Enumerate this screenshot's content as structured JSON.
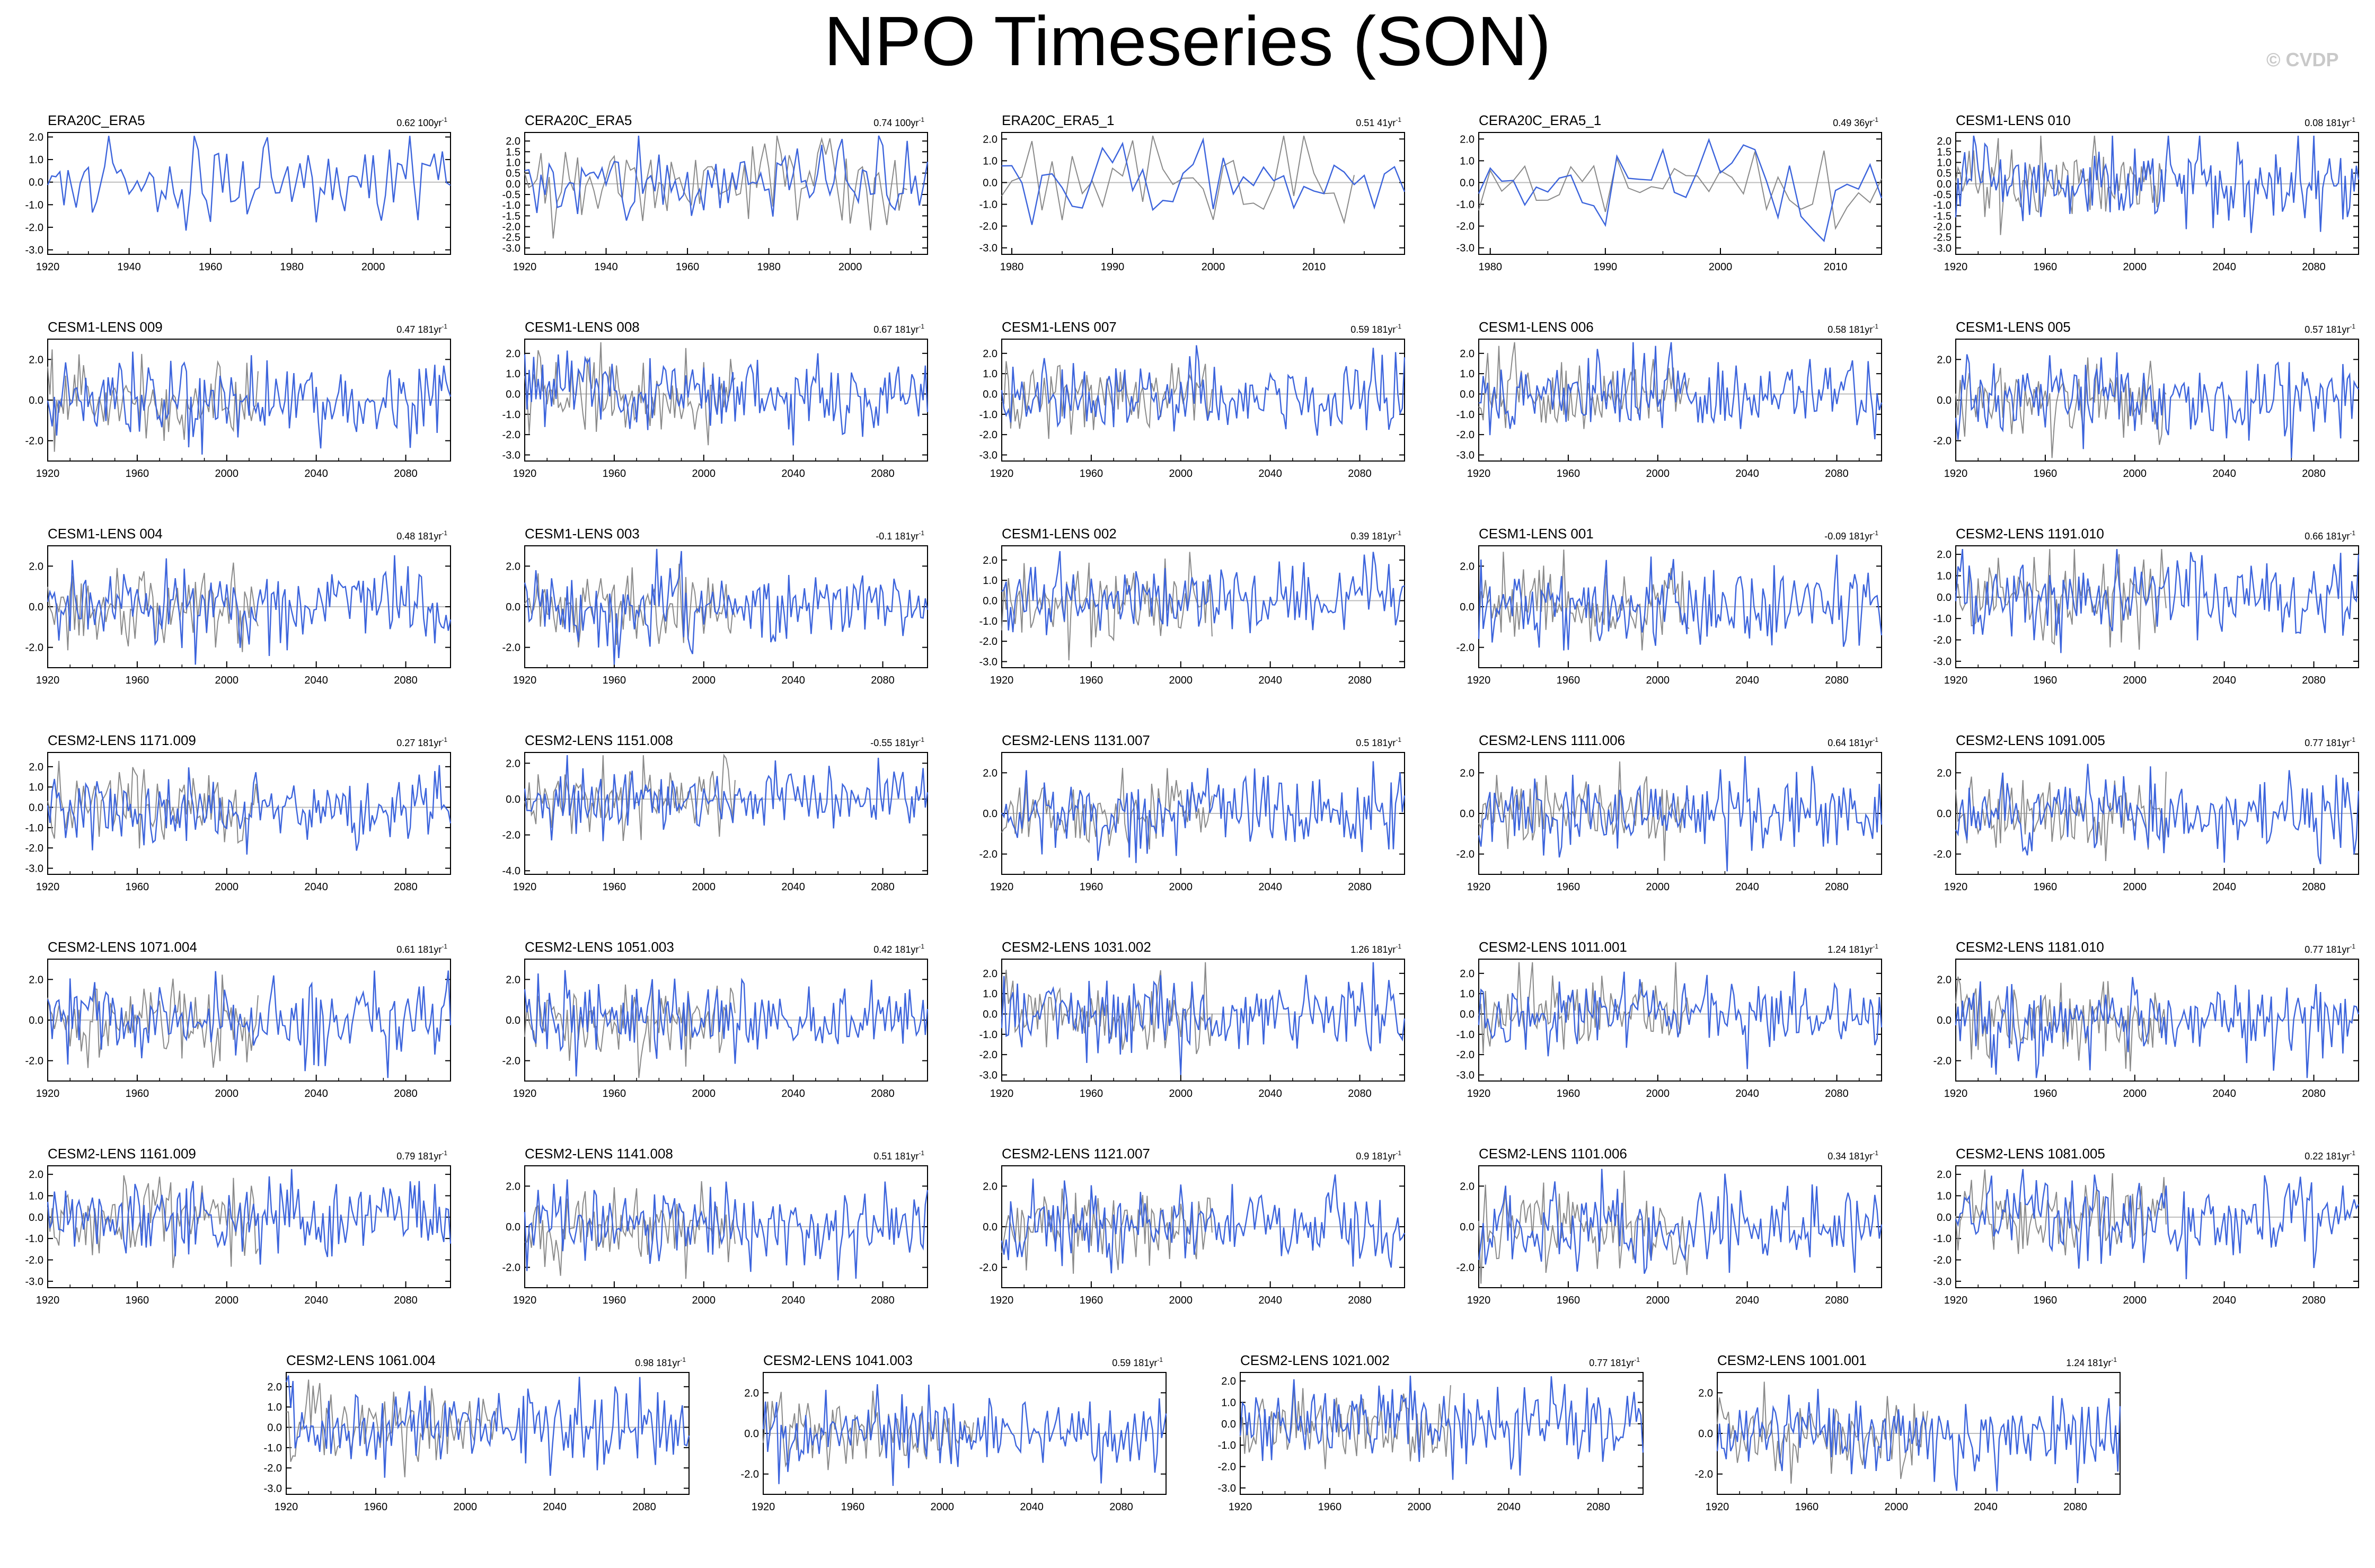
{
  "title": "NPO Timeseries (SON)",
  "watermark": "© CVDP",
  "colors": {
    "series_main": "#3c64dc",
    "series_obs": "#8a8a8a",
    "axis": "#000000",
    "zero_line": "#bdbdbd"
  },
  "chart_data": [
    {
      "type": "line",
      "name": "ERA20C_ERA5",
      "trend": "0.62 100yr",
      "x": [
        1920,
        2019
      ],
      "xticks": [
        1920,
        1940,
        1960,
        1980,
        2000
      ],
      "yticks": [
        -3.0,
        -2.0,
        -1.0,
        0.0,
        1.0,
        2.0
      ],
      "ylim": [
        -3.2,
        2.2
      ],
      "overlay": false,
      "seed": 11
    },
    {
      "type": "line",
      "name": "CERA20C_ERA5",
      "trend": "0.74 100yr",
      "x": [
        1920,
        2019
      ],
      "xticks": [
        1920,
        1940,
        1960,
        1980,
        2000
      ],
      "yticks": [
        -3.0,
        -2.5,
        -2.0,
        -1.5,
        -1.0,
        -0.5,
        0.0,
        0.5,
        1.0,
        1.5,
        2.0
      ],
      "ylim": [
        -3.3,
        2.4
      ],
      "overlay": true,
      "seed": 12
    },
    {
      "type": "line",
      "name": "ERA20C_ERA5_1",
      "trend": "0.51 41yr",
      "x": [
        1979,
        2019
      ],
      "xticks": [
        1980,
        1990,
        2000,
        2010
      ],
      "yticks": [
        -3.0,
        -2.0,
        -1.0,
        0.0,
        1.0,
        2.0
      ],
      "ylim": [
        -3.3,
        2.3
      ],
      "overlay": true,
      "seed": 13
    },
    {
      "type": "line",
      "name": "CERA20C_ERA5_1",
      "trend": "0.49 36yr",
      "x": [
        1979,
        2014
      ],
      "xticks": [
        1980,
        1990,
        2000,
        2010
      ],
      "yticks": [
        -3.0,
        -2.0,
        -1.0,
        0.0,
        1.0,
        2.0
      ],
      "ylim": [
        -3.3,
        2.3
      ],
      "overlay": true,
      "seed": 14
    },
    {
      "type": "line",
      "name": "CESM1-LENS 010",
      "trend": "0.08 181yr",
      "x": [
        1920,
        2100
      ],
      "xticks": [
        1920,
        1960,
        2000,
        2040,
        2080
      ],
      "yticks": [
        -3.0,
        -2.5,
        -2.0,
        -1.5,
        -1.0,
        -0.5,
        0.0,
        0.5,
        1.0,
        1.5,
        2.0
      ],
      "ylim": [
        -3.3,
        2.4
      ],
      "overlay": true,
      "seed": 15
    },
    {
      "type": "line",
      "name": "CESM1-LENS 009",
      "trend": "0.47 181yr",
      "x": [
        1920,
        2100
      ],
      "xticks": [
        1920,
        1960,
        2000,
        2040,
        2080
      ],
      "yticks": [
        -2.0,
        0.0,
        2.0
      ],
      "ylim": [
        -3.0,
        3.0
      ],
      "overlay": true,
      "seed": 21
    },
    {
      "type": "line",
      "name": "CESM1-LENS 008",
      "trend": "0.67 181yr",
      "x": [
        1920,
        2100
      ],
      "xticks": [
        1920,
        1960,
        2000,
        2040,
        2080
      ],
      "yticks": [
        -3.0,
        -2.0,
        -1.0,
        0.0,
        1.0,
        2.0
      ],
      "ylim": [
        -3.3,
        2.7
      ],
      "overlay": true,
      "seed": 22
    },
    {
      "type": "line",
      "name": "CESM1-LENS 007",
      "trend": "0.59 181yr",
      "x": [
        1920,
        2100
      ],
      "xticks": [
        1920,
        1960,
        2000,
        2040,
        2080
      ],
      "yticks": [
        -3.0,
        -2.0,
        -1.0,
        0.0,
        1.0,
        2.0
      ],
      "ylim": [
        -3.3,
        2.7
      ],
      "overlay": true,
      "seed": 23
    },
    {
      "type": "line",
      "name": "CESM1-LENS 006",
      "trend": "0.58 181yr",
      "x": [
        1920,
        2100
      ],
      "xticks": [
        1920,
        1960,
        2000,
        2040,
        2080
      ],
      "yticks": [
        -3.0,
        -2.0,
        -1.0,
        0.0,
        1.0,
        2.0
      ],
      "ylim": [
        -3.3,
        2.7
      ],
      "overlay": true,
      "seed": 24
    },
    {
      "type": "line",
      "name": "CESM1-LENS 005",
      "trend": "0.57 181yr",
      "x": [
        1920,
        2100
      ],
      "xticks": [
        1920,
        1960,
        2000,
        2040,
        2080
      ],
      "yticks": [
        -2.0,
        0.0,
        2.0
      ],
      "ylim": [
        -3.0,
        3.0
      ],
      "overlay": true,
      "seed": 25
    },
    {
      "type": "line",
      "name": "CESM1-LENS 004",
      "trend": "0.48 181yr",
      "x": [
        1920,
        2100
      ],
      "xticks": [
        1920,
        1960,
        2000,
        2040,
        2080
      ],
      "yticks": [
        -2.0,
        0.0,
        2.0
      ],
      "ylim": [
        -3.0,
        3.0
      ],
      "overlay": true,
      "seed": 31
    },
    {
      "type": "line",
      "name": "CESM1-LENS 003",
      "trend": "-0.1 181yr",
      "x": [
        1920,
        2100
      ],
      "xticks": [
        1920,
        1960,
        2000,
        2040,
        2080
      ],
      "yticks": [
        -2.0,
        0.0,
        2.0
      ],
      "ylim": [
        -3.0,
        3.0
      ],
      "overlay": true,
      "seed": 32
    },
    {
      "type": "line",
      "name": "CESM1-LENS 002",
      "trend": "0.39 181yr",
      "x": [
        1920,
        2100
      ],
      "xticks": [
        1920,
        1960,
        2000,
        2040,
        2080
      ],
      "yticks": [
        -3.0,
        -2.0,
        -1.0,
        0.0,
        1.0,
        2.0
      ],
      "ylim": [
        -3.3,
        2.7
      ],
      "overlay": true,
      "seed": 33
    },
    {
      "type": "line",
      "name": "CESM1-LENS 001",
      "trend": "-0.09 181yr",
      "x": [
        1920,
        2100
      ],
      "xticks": [
        1920,
        1960,
        2000,
        2040,
        2080
      ],
      "yticks": [
        -2.0,
        0.0,
        2.0
      ],
      "ylim": [
        -3.0,
        3.0
      ],
      "overlay": true,
      "seed": 34
    },
    {
      "type": "line",
      "name": "CESM2-LENS 1191.010",
      "trend": "0.66 181yr",
      "x": [
        1920,
        2100
      ],
      "xticks": [
        1920,
        1960,
        2000,
        2040,
        2080
      ],
      "yticks": [
        -3.0,
        -2.0,
        -1.0,
        0.0,
        1.0,
        2.0
      ],
      "ylim": [
        -3.3,
        2.4
      ],
      "overlay": true,
      "seed": 35
    },
    {
      "type": "line",
      "name": "CESM2-LENS 1171.009",
      "trend": "0.27 181yr",
      "x": [
        1920,
        2100
      ],
      "xticks": [
        1920,
        1960,
        2000,
        2040,
        2080
      ],
      "yticks": [
        -3.0,
        -2.0,
        -1.0,
        0.0,
        1.0,
        2.0
      ],
      "ylim": [
        -3.3,
        2.7
      ],
      "overlay": true,
      "seed": 41
    },
    {
      "type": "line",
      "name": "CESM2-LENS 1151.008",
      "trend": "-0.55 181yr",
      "x": [
        1920,
        2100
      ],
      "xticks": [
        1920,
        1960,
        2000,
        2040,
        2080
      ],
      "yticks": [
        -4.0,
        -2.0,
        0.0,
        2.0
      ],
      "ylim": [
        -4.2,
        2.6
      ],
      "overlay": true,
      "seed": 42
    },
    {
      "type": "line",
      "name": "CESM2-LENS 1131.007",
      "trend": "0.5 181yr",
      "x": [
        1920,
        2100
      ],
      "xticks": [
        1920,
        1960,
        2000,
        2040,
        2080
      ],
      "yticks": [
        -2.0,
        0.0,
        2.0
      ],
      "ylim": [
        -3.0,
        3.0
      ],
      "overlay": true,
      "seed": 43
    },
    {
      "type": "line",
      "name": "CESM2-LENS 1111.006",
      "trend": "0.64 181yr",
      "x": [
        1920,
        2100
      ],
      "xticks": [
        1920,
        1960,
        2000,
        2040,
        2080
      ],
      "yticks": [
        -2.0,
        0.0,
        2.0
      ],
      "ylim": [
        -3.0,
        3.0
      ],
      "overlay": true,
      "seed": 44
    },
    {
      "type": "line",
      "name": "CESM2-LENS 1091.005",
      "trend": "0.77 181yr",
      "x": [
        1920,
        2100
      ],
      "xticks": [
        1920,
        1960,
        2000,
        2040,
        2080
      ],
      "yticks": [
        -2.0,
        0.0,
        2.0
      ],
      "ylim": [
        -3.0,
        3.0
      ],
      "overlay": true,
      "seed": 45
    },
    {
      "type": "line",
      "name": "CESM2-LENS 1071.004",
      "trend": "0.61 181yr",
      "x": [
        1920,
        2100
      ],
      "xticks": [
        1920,
        1960,
        2000,
        2040,
        2080
      ],
      "yticks": [
        -2.0,
        0.0,
        2.0
      ],
      "ylim": [
        -3.0,
        3.0
      ],
      "overlay": true,
      "seed": 51
    },
    {
      "type": "line",
      "name": "CESM2-LENS 1051.003",
      "trend": "0.42 181yr",
      "x": [
        1920,
        2100
      ],
      "xticks": [
        1920,
        1960,
        2000,
        2040,
        2080
      ],
      "yticks": [
        -2.0,
        0.0,
        2.0
      ],
      "ylim": [
        -3.0,
        3.0
      ],
      "overlay": true,
      "seed": 52
    },
    {
      "type": "line",
      "name": "CESM2-LENS 1031.002",
      "trend": "1.26 181yr",
      "x": [
        1920,
        2100
      ],
      "xticks": [
        1920,
        1960,
        2000,
        2040,
        2080
      ],
      "yticks": [
        -3.0,
        -2.0,
        -1.0,
        0.0,
        1.0,
        2.0
      ],
      "ylim": [
        -3.3,
        2.7
      ],
      "overlay": true,
      "seed": 53
    },
    {
      "type": "line",
      "name": "CESM2-LENS 1011.001",
      "trend": "1.24 181yr",
      "x": [
        1920,
        2100
      ],
      "xticks": [
        1920,
        1960,
        2000,
        2040,
        2080
      ],
      "yticks": [
        -3.0,
        -2.0,
        -1.0,
        0.0,
        1.0,
        2.0
      ],
      "ylim": [
        -3.3,
        2.7
      ],
      "overlay": true,
      "seed": 54
    },
    {
      "type": "line",
      "name": "CESM2-LENS 1181.010",
      "trend": "0.77 181yr",
      "x": [
        1920,
        2100
      ],
      "xticks": [
        1920,
        1960,
        2000,
        2040,
        2080
      ],
      "yticks": [
        -2.0,
        0.0,
        2.0
      ],
      "ylim": [
        -3.0,
        3.0
      ],
      "overlay": true,
      "seed": 55
    },
    {
      "type": "line",
      "name": "CESM2-LENS 1161.009",
      "trend": "0.79 181yr",
      "x": [
        1920,
        2100
      ],
      "xticks": [
        1920,
        1960,
        2000,
        2040,
        2080
      ],
      "yticks": [
        -3.0,
        -2.0,
        -1.0,
        0.0,
        1.0,
        2.0
      ],
      "ylim": [
        -3.3,
        2.4
      ],
      "overlay": true,
      "seed": 61
    },
    {
      "type": "line",
      "name": "CESM2-LENS 1141.008",
      "trend": "0.51 181yr",
      "x": [
        1920,
        2100
      ],
      "xticks": [
        1920,
        1960,
        2000,
        2040,
        2080
      ],
      "yticks": [
        -2.0,
        0.0,
        2.0
      ],
      "ylim": [
        -3.0,
        3.0
      ],
      "overlay": true,
      "seed": 62
    },
    {
      "type": "line",
      "name": "CESM2-LENS 1121.007",
      "trend": "0.9 181yr",
      "x": [
        1920,
        2100
      ],
      "xticks": [
        1920,
        1960,
        2000,
        2040,
        2080
      ],
      "yticks": [
        -2.0,
        0.0,
        2.0
      ],
      "ylim": [
        -3.0,
        3.0
      ],
      "overlay": true,
      "seed": 63
    },
    {
      "type": "line",
      "name": "CESM2-LENS 1101.006",
      "trend": "0.34 181yr",
      "x": [
        1920,
        2100
      ],
      "xticks": [
        1920,
        1960,
        2000,
        2040,
        2080
      ],
      "yticks": [
        -2.0,
        0.0,
        2.0
      ],
      "ylim": [
        -3.0,
        3.0
      ],
      "overlay": true,
      "seed": 64
    },
    {
      "type": "line",
      "name": "CESM2-LENS 1081.005",
      "trend": "0.22 181yr",
      "x": [
        1920,
        2100
      ],
      "xticks": [
        1920,
        1960,
        2000,
        2040,
        2080
      ],
      "yticks": [
        -3.0,
        -2.0,
        -1.0,
        0.0,
        1.0,
        2.0
      ],
      "ylim": [
        -3.3,
        2.4
      ],
      "overlay": true,
      "seed": 65
    },
    {
      "type": "line",
      "name": "CESM2-LENS 1061.004",
      "trend": "0.98 181yr",
      "x": [
        1920,
        2100
      ],
      "xticks": [
        1920,
        1960,
        2000,
        2040,
        2080
      ],
      "yticks": [
        -3.0,
        -2.0,
        -1.0,
        0.0,
        1.0,
        2.0
      ],
      "ylim": [
        -3.3,
        2.7
      ],
      "overlay": true,
      "seed": 71
    },
    {
      "type": "line",
      "name": "CESM2-LENS 1041.003",
      "trend": "0.59 181yr",
      "x": [
        1920,
        2100
      ],
      "xticks": [
        1920,
        1960,
        2000,
        2040,
        2080
      ],
      "yticks": [
        -2.0,
        0.0,
        2.0
      ],
      "ylim": [
        -3.0,
        3.0
      ],
      "overlay": true,
      "seed": 72
    },
    {
      "type": "line",
      "name": "CESM2-LENS 1021.002",
      "trend": "0.77 181yr",
      "x": [
        1920,
        2100
      ],
      "xticks": [
        1920,
        1960,
        2000,
        2040,
        2080
      ],
      "yticks": [
        -3.0,
        -2.0,
        -1.0,
        0.0,
        1.0,
        2.0
      ],
      "ylim": [
        -3.3,
        2.4
      ],
      "overlay": true,
      "seed": 73
    },
    {
      "type": "line",
      "name": "CESM2-LENS 1001.001",
      "trend": "1.24 181yr",
      "x": [
        1920,
        2100
      ],
      "xticks": [
        1920,
        1960,
        2000,
        2040,
        2080
      ],
      "yticks": [
        -2.0,
        0.0,
        2.0
      ],
      "ylim": [
        -3.0,
        3.0
      ],
      "overlay": true,
      "seed": 74
    }
  ]
}
